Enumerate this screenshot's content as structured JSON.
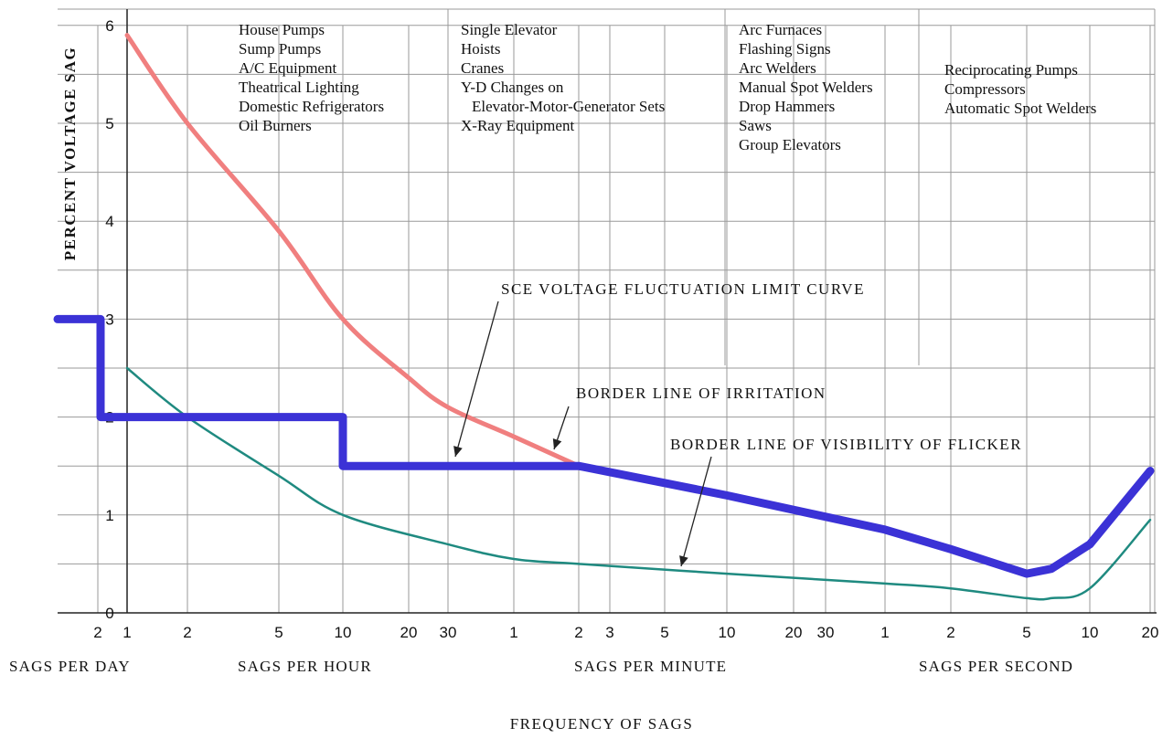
{
  "chart_data": {
    "type": "line",
    "xlabel": "FREQUENCY OF SAGS",
    "ylabel": "PERCENT VOLTAGE SAG",
    "ylim": [
      0,
      6
    ],
    "y_ticks": [
      "0",
      "1",
      "2",
      "3",
      "4",
      "5",
      "6"
    ],
    "x_tick_labels": [
      "2",
      "1",
      "2",
      "5",
      "10",
      "20",
      "30",
      "1",
      "2",
      "3",
      "5",
      "10",
      "20",
      "30",
      "1",
      "2",
      "5",
      "10",
      "20"
    ],
    "x_unit_labels": [
      "SAGS PER DAY",
      "SAGS PER HOUR",
      "SAGS PER MINUTE",
      "SAGS PER SECOND"
    ],
    "application_groups": [
      [
        "House Pumps",
        "Sump Pumps",
        "A/C Equipment",
        "Theatrical Lighting",
        "Domestic Refrigerators",
        "Oil Burners"
      ],
      [
        "Single Elevator",
        "Hoists",
        "Cranes",
        "Y-D Changes on",
        "Elevator-Motor-Generator Sets",
        "X-Ray Equipment"
      ],
      [
        "Arc Furnaces",
        "Flashing Signs",
        "Arc Welders",
        "Manual Spot Welders",
        "Drop Hammers",
        "Saws",
        "Group Elevators"
      ],
      [
        "Reciprocating Pumps",
        "Compressors",
        "Automatic Spot Welders"
      ]
    ],
    "annotations": [
      "SCE VOLTAGE FLUCTUATION LIMIT CURVE",
      "BORDER LINE OF IRRITATION",
      "BORDER LINE OF VISIBILITY OF FLICKER"
    ],
    "series": [
      {
        "name": "SCE VOLTAGE FLUCTUATION LIMIT CURVE",
        "color": "#3b32d6",
        "x": [
          "1/day",
          "2/day",
          "2/day",
          "10/hour",
          "10/hour",
          "2/min",
          "10/min",
          "1/sec",
          "2/sec",
          "5/sec",
          "7/sec",
          "10/sec",
          "20/sec"
        ],
        "y": [
          3.0,
          3.0,
          2.0,
          2.0,
          1.5,
          1.5,
          1.2,
          0.85,
          0.65,
          0.4,
          0.45,
          0.7,
          1.45
        ]
      },
      {
        "name": "BORDER LINE OF IRRITATION",
        "color": "#f07f7f",
        "x": [
          "1/hour",
          "2/hour",
          "5/hour",
          "10/hour",
          "20/hour",
          "30/hour",
          "1/min",
          "2/min"
        ],
        "y": [
          5.9,
          5.0,
          3.9,
          3.0,
          2.4,
          2.1,
          1.8,
          1.5
        ]
      },
      {
        "name": "BORDER LINE OF VISIBILITY OF FLICKER",
        "color": "#1f8a80",
        "x": [
          "1/hour",
          "2/hour",
          "5/hour",
          "10/hour",
          "30/hour",
          "1/min",
          "2/min",
          "10/min",
          "1/sec",
          "2/sec",
          "5/sec",
          "7/sec",
          "10/sec",
          "20/sec"
        ],
        "y": [
          2.5,
          2.0,
          1.4,
          1.0,
          0.7,
          0.55,
          0.5,
          0.4,
          0.3,
          0.25,
          0.15,
          0.15,
          0.25,
          0.95
        ]
      }
    ]
  }
}
